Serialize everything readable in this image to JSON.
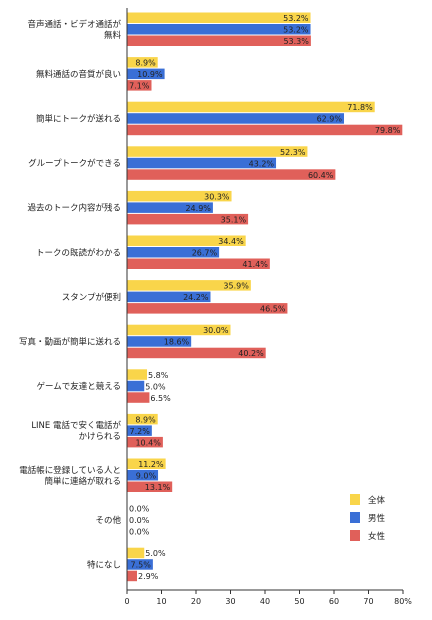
{
  "chart_data": {
    "type": "bar",
    "orientation": "horizontal",
    "categories": [
      [
        "音声通話・ビデオ通話が",
        "無料"
      ],
      [
        "無料通話の音質が良い"
      ],
      [
        "簡単にトークが送れる"
      ],
      [
        "グループトークができる"
      ],
      [
        "過去のトーク内容が残る"
      ],
      [
        "トークの既読がわかる"
      ],
      [
        "スタンプが便利"
      ],
      [
        "写真・動画が簡単に送れる"
      ],
      [
        "ゲームで友達と競える"
      ],
      [
        "LINE 電話で安く電話が",
        "かけられる"
      ],
      [
        "電話帳に登録している人と",
        "簡単に連絡が取れる"
      ],
      [
        "その他"
      ],
      [
        "特になし"
      ]
    ],
    "series": [
      {
        "name": "全体",
        "color": "#f9d54a",
        "values": [
          53.2,
          8.9,
          71.8,
          52.3,
          30.3,
          34.4,
          35.9,
          30.0,
          5.8,
          8.9,
          11.2,
          0.0,
          5.0
        ],
        "labels": [
          "53.2%",
          "8.9%",
          "71.8%",
          "52.3%",
          "30.3%",
          "34.4%",
          "35.9%",
          "30.0%",
          "5.8%",
          "8.9%",
          "11.2%",
          "0.0%",
          "5.0%"
        ]
      },
      {
        "name": "男性",
        "color": "#3a6fd6",
        "values": [
          53.2,
          10.9,
          62.9,
          43.2,
          24.9,
          26.7,
          24.2,
          18.6,
          5.0,
          7.2,
          9.0,
          0.0,
          7.5
        ],
        "labels": [
          "53.2%",
          "10.9%",
          "62.9%",
          "43.2%",
          "24.9%",
          "26.7%",
          "24.2%",
          "18.6%",
          "5.0%",
          "7.2%",
          "9.0%",
          "0.0%",
          "7.5%"
        ]
      },
      {
        "name": "女性",
        "color": "#e0605a",
        "values": [
          53.3,
          7.1,
          79.8,
          60.4,
          35.1,
          41.4,
          46.5,
          40.2,
          6.5,
          10.4,
          13.1,
          0.0,
          2.9
        ],
        "labels": [
          "53.3%",
          "7.1%",
          "79.8%",
          "60.4%",
          "35.1%",
          "41.4%",
          "46.5%",
          "40.2%",
          "6.5%",
          "10.4%",
          "13.1%",
          "0.0%",
          "2.9%"
        ]
      }
    ],
    "xlim": [
      0,
      80
    ],
    "xticks": [
      "0",
      "10",
      "20",
      "30",
      "40",
      "50",
      "60",
      "70",
      "80%"
    ],
    "legend_position": "bottom-right",
    "grid": false
  }
}
